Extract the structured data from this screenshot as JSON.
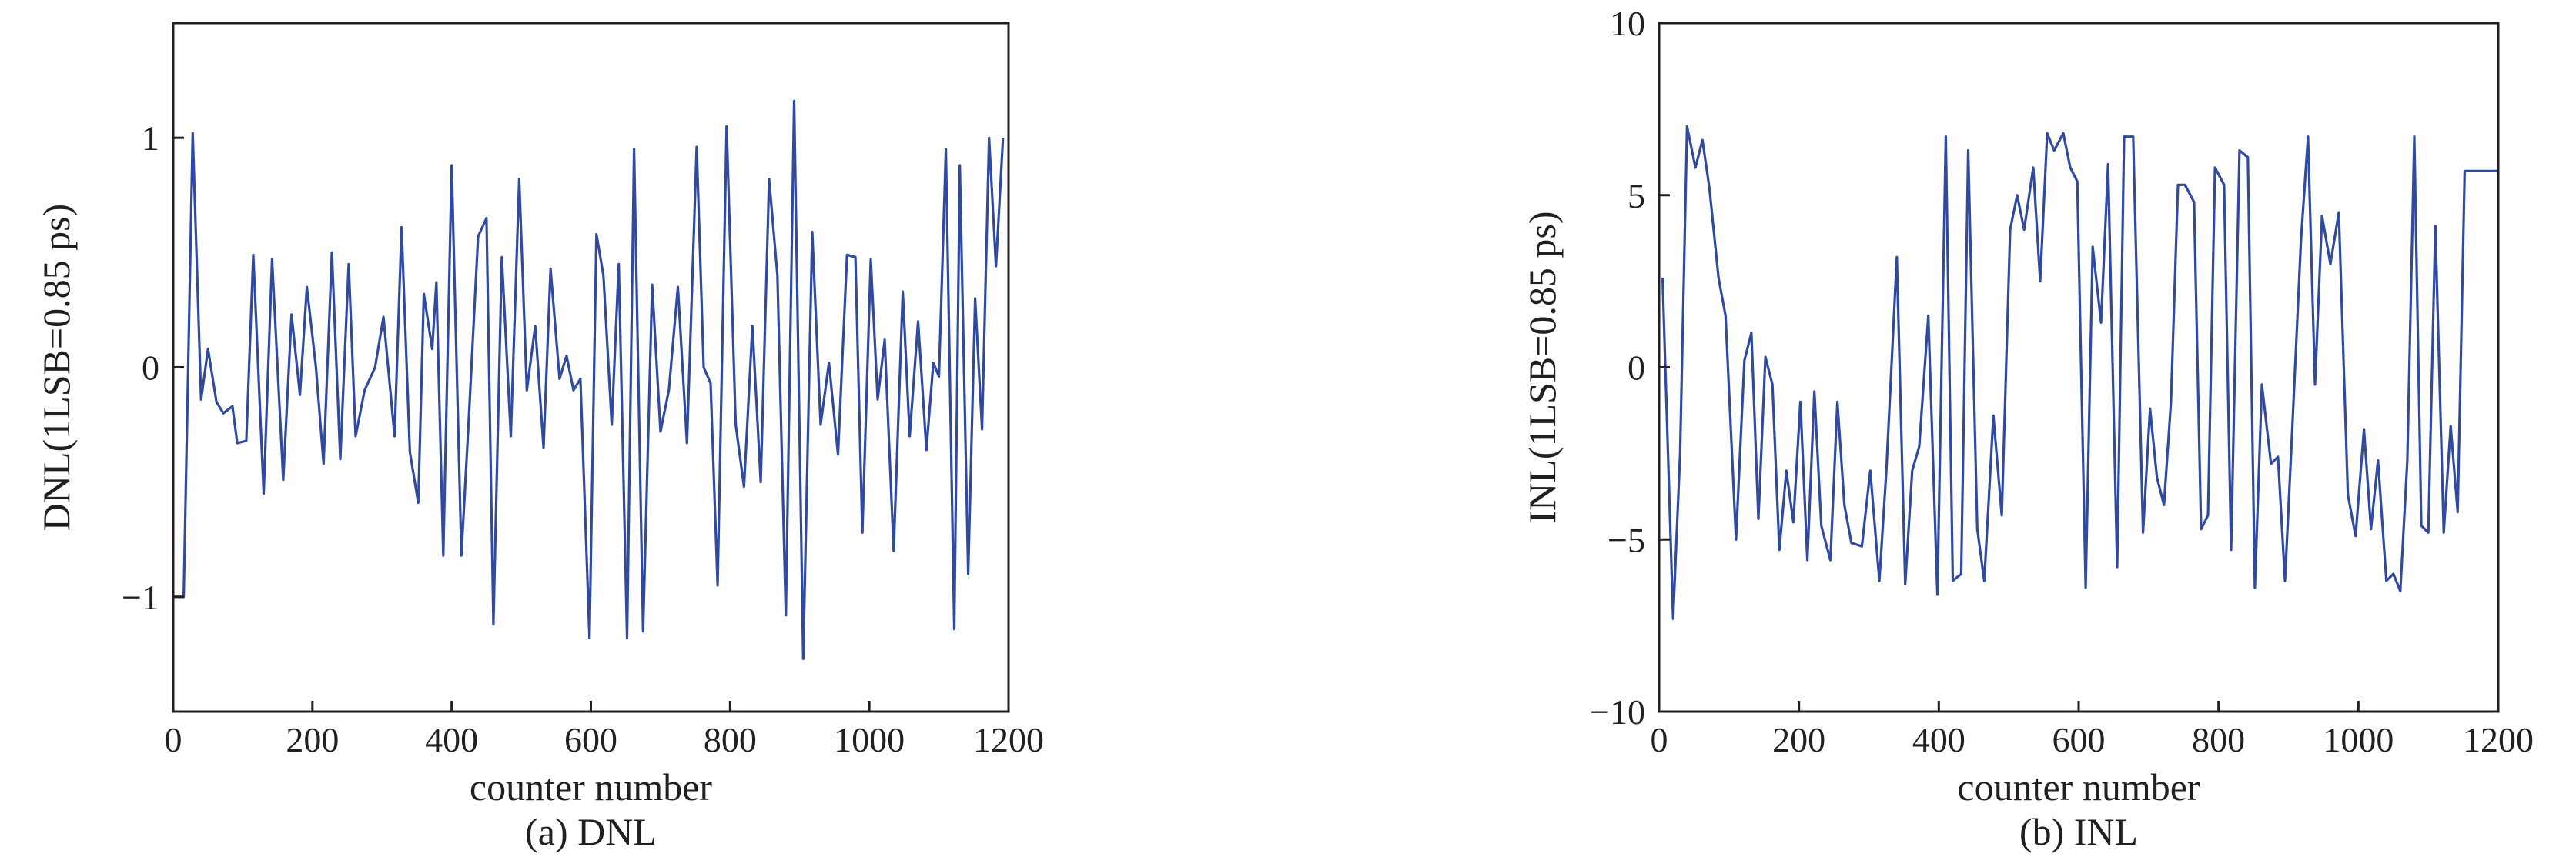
{
  "colors": {
    "line": "#2f4aa0",
    "axis": "#231f20"
  },
  "chart_data": [
    {
      "type": "line",
      "caption": "(a) DNL",
      "xlabel": "counter number",
      "ylabel": "DNL(1LSB=0.85 ps)",
      "xlim": [
        0,
        1200
      ],
      "ylim": [
        -1.5,
        1.5
      ],
      "xticks": [
        0,
        200,
        400,
        600,
        800,
        1000,
        1200
      ],
      "xtick_labels": [
        "0",
        "200",
        "400",
        "600",
        "800",
        "1000",
        "1200"
      ],
      "yticks": [
        1,
        0,
        -1
      ],
      "ytick_labels": [
        "1",
        "0",
        "−1"
      ],
      "grid": false,
      "series": [
        {
          "x": [
            0,
            15,
            28,
            40,
            50,
            62,
            72,
            85,
            92,
            105,
            115,
            130,
            142,
            158,
            170,
            182,
            192,
            205,
            216,
            228,
            240,
            252,
            262,
            275,
            290,
            302,
            318,
            328,
            340,
            352,
            360,
            372,
            378,
            388,
            400,
            414,
            425,
            438,
            450,
            460,
            472,
            485,
            497,
            508,
            520,
            532,
            542,
            555,
            565,
            575,
            585,
            598,
            608,
            618,
            630,
            640,
            652,
            662,
            675,
            688,
            700,
            712,
            725,
            738,
            752,
            762,
            772,
            782,
            795,
            808,
            820,
            832,
            844,
            856,
            868,
            880,
            892,
            905,
            918,
            930,
            942,
            955,
            968,
            980,
            990,
            1002,
            1012,
            1022,
            1035,
            1048,
            1058,
            1070,
            1082,
            1092,
            1100,
            1110,
            1122,
            1130,
            1142,
            1152,
            1162,
            1172,
            1182,
            1192
          ],
          "y": [
            -1.0,
            -1.0,
            1.02,
            -0.14,
            0.08,
            -0.15,
            -0.2,
            -0.17,
            -0.33,
            -0.32,
            0.49,
            -0.55,
            0.47,
            -0.49,
            0.23,
            -0.12,
            0.35,
            0.0,
            -0.42,
            0.5,
            -0.4,
            0.45,
            -0.3,
            -0.1,
            0.0,
            0.22,
            -0.3,
            0.61,
            -0.37,
            -0.59,
            0.32,
            0.08,
            0.37,
            -0.82,
            0.88,
            -0.82,
            -0.2,
            0.57,
            0.65,
            -1.12,
            0.48,
            -0.3,
            0.82,
            -0.1,
            0.18,
            -0.35,
            0.43,
            -0.05,
            0.05,
            -0.1,
            -0.05,
            -1.18,
            0.58,
            0.4,
            -0.25,
            0.45,
            -1.18,
            0.95,
            -1.15,
            0.36,
            -0.28,
            -0.1,
            0.35,
            -0.33,
            0.96,
            0.0,
            -0.07,
            -0.95,
            1.05,
            -0.25,
            -0.52,
            0.18,
            -0.5,
            0.82,
            0.4,
            -1.08,
            1.16,
            -1.27,
            0.59,
            -0.25,
            0.02,
            -0.38,
            0.49,
            0.48,
            -0.72,
            0.47,
            -0.14,
            0.12,
            -0.8,
            0.33,
            -0.3,
            0.2,
            -0.36,
            0.02,
            -0.04,
            0.95,
            -1.14,
            0.88,
            -0.9,
            0.3,
            -0.27,
            1.0,
            0.44,
            1.0
          ]
        }
      ]
    },
    {
      "type": "line",
      "caption": "(b) INL",
      "xlabel": "counter number",
      "ylabel": "INL(1LSB=0.85 ps)",
      "xlim": [
        0,
        1200
      ],
      "ylim": [
        -10,
        10
      ],
      "xticks": [
        0,
        200,
        400,
        600,
        800,
        1000,
        1200
      ],
      "xtick_labels": [
        "0",
        "200",
        "400",
        "600",
        "800",
        "1000",
        "1200"
      ],
      "yticks": [
        10,
        5,
        0,
        -5,
        -10
      ],
      "ytick_labels": [
        "10",
        "5",
        "0",
        "−5",
        "−10"
      ],
      "grid": false,
      "series": [
        {
          "x": [
            5,
            20,
            30,
            40,
            52,
            62,
            72,
            85,
            95,
            110,
            122,
            132,
            142,
            152,
            162,
            172,
            182,
            192,
            202,
            212,
            222,
            232,
            245,
            255,
            265,
            275,
            290,
            302,
            315,
            325,
            340,
            352,
            362,
            372,
            385,
            398,
            410,
            420,
            432,
            442,
            455,
            465,
            478,
            490,
            502,
            512,
            522,
            535,
            545,
            555,
            565,
            578,
            588,
            598,
            610,
            620,
            632,
            642,
            655,
            665,
            678,
            692,
            702,
            712,
            722,
            732,
            742,
            752,
            765,
            775,
            785,
            795,
            808,
            818,
            830,
            842,
            852,
            862,
            875,
            885,
            895,
            905,
            918,
            928,
            938,
            948,
            960,
            972,
            985,
            996,
            1008,
            1018,
            1028,
            1040,
            1050,
            1060,
            1070,
            1080,
            1090,
            1100,
            1110,
            1122,
            1132,
            1142,
            1152,
            1162,
            1172,
            1182,
            1192,
            1200
          ],
          "y": [
            2.6,
            -7.3,
            -2.5,
            7.0,
            5.8,
            6.6,
            5.2,
            2.6,
            1.5,
            -5.0,
            0.2,
            1.0,
            -4.4,
            0.3,
            -0.5,
            -5.3,
            -3.0,
            -4.5,
            -1.0,
            -5.6,
            -0.7,
            -4.6,
            -5.6,
            -1.0,
            -4.0,
            -5.1,
            -5.2,
            -3.0,
            -6.2,
            -3.0,
            3.2,
            -6.3,
            -3.0,
            -2.3,
            1.5,
            -6.6,
            6.7,
            -6.2,
            -6.0,
            6.3,
            -4.7,
            -6.2,
            -1.4,
            -4.3,
            4.0,
            5.0,
            4.0,
            5.8,
            2.5,
            6.8,
            6.3,
            6.8,
            5.8,
            5.4,
            -6.4,
            3.5,
            1.3,
            5.9,
            -5.8,
            6.7,
            6.7,
            -4.8,
            -1.2,
            -3.2,
            -4.0,
            -1.0,
            5.3,
            5.3,
            4.8,
            -4.7,
            -4.3,
            5.8,
            5.3,
            -5.3,
            6.3,
            6.1,
            -6.4,
            -0.5,
            -2.8,
            -2.6,
            -6.2,
            -2.0,
            3.7,
            6.7,
            -0.5,
            4.4,
            3.0,
            4.5,
            -3.7,
            -4.9,
            -1.8,
            -4.7,
            -2.7,
            -6.2,
            -6.0,
            -6.5,
            -2.7,
            6.7,
            -4.6,
            -4.8,
            4.1,
            -4.8,
            -1.7,
            -4.2,
            5.7,
            5.7,
            5.7,
            5.7,
            5.7,
            5.7
          ]
        }
      ]
    }
  ]
}
